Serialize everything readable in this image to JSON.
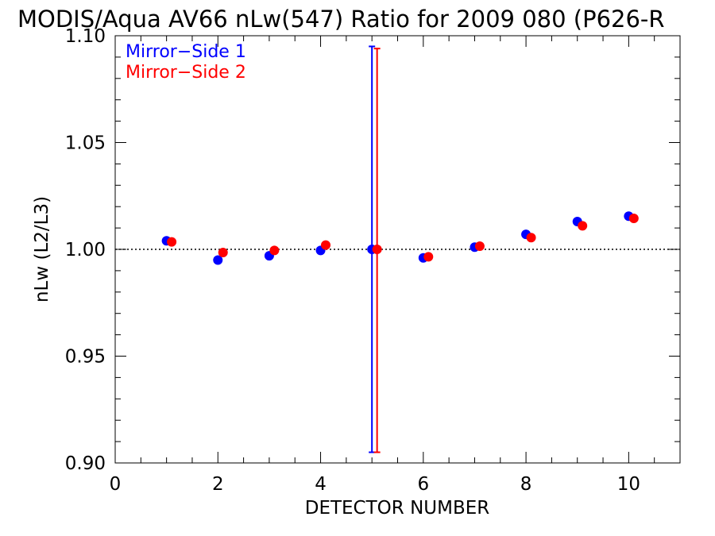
{
  "chart_data": {
    "type": "scatter",
    "title": "MODIS/Aqua AV66 nLw(547) Ratio for 2009 080 (P626-R",
    "xlabel": "DETECTOR NUMBER",
    "ylabel": "nLw (L2/L3)",
    "xlim": [
      0,
      11
    ],
    "ylim": [
      0.9,
      1.1
    ],
    "x_ticks": [
      0,
      2,
      4,
      6,
      8,
      10
    ],
    "y_ticks": [
      0.9,
      0.95,
      1.0,
      1.05,
      1.1
    ],
    "x_tick_labels": [
      "0",
      "2",
      "4",
      "6",
      "8",
      "10"
    ],
    "y_tick_labels": [
      "0.90",
      "0.95",
      "1.00",
      "1.05",
      "1.10"
    ],
    "reference_line": 1.0,
    "legend_position": "top-left",
    "series": [
      {
        "name": "Mirror−Side 1",
        "color": "#0000ff",
        "x": [
          1,
          2,
          3,
          4,
          5,
          6,
          7,
          8,
          9,
          10
        ],
        "y": [
          1.004,
          0.995,
          0.997,
          0.9995,
          1.0,
          0.996,
          1.001,
          1.007,
          1.013,
          1.0155
        ],
        "error_bar": {
          "x": 5,
          "low": 0.905,
          "high": 1.095
        }
      },
      {
        "name": "Mirror−Side 2",
        "color": "#ff0000",
        "x": [
          1.1,
          2.1,
          3.1,
          4.1,
          5.1,
          6.1,
          7.1,
          8.1,
          9.1,
          10.1
        ],
        "y": [
          1.0035,
          0.9985,
          0.9995,
          1.002,
          1.0,
          0.9965,
          1.0015,
          1.0055,
          1.011,
          1.0145
        ],
        "error_bar": {
          "x": 5.1,
          "low": 0.905,
          "high": 1.094
        }
      }
    ]
  }
}
